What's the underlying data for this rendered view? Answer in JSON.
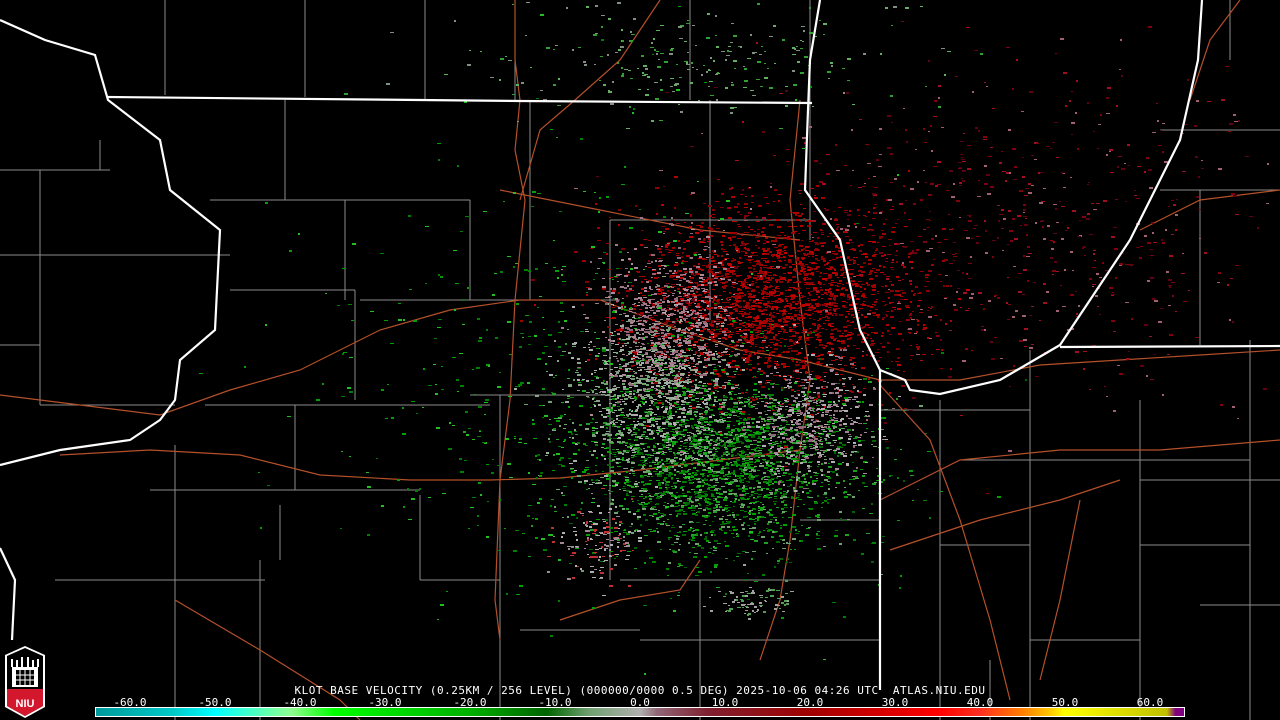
{
  "product_title": "KLOT BASE VELOCITY (0.25KM / 256 LEVEL) (000000/0000 0.5 DEG) 2025-10-06 04:26 UTC  ATLAS.NIU.EDU",
  "logo": {
    "text": "NIU",
    "accent": "#d3182e"
  },
  "colorbar": {
    "units_range": [
      -64,
      64
    ],
    "tick_labels": [
      "-60.0",
      "-50.0",
      "-40.0",
      "-30.0",
      "-20.0",
      "-10.0",
      "0.0",
      "10.0",
      "20.0",
      "30.0",
      "40.0",
      "50.0",
      "60.0"
    ],
    "tick_values": [
      -60,
      -50,
      -40,
      -30,
      -20,
      -10,
      0,
      10,
      20,
      30,
      40,
      50,
      60
    ],
    "stops": [
      {
        "v": -64,
        "c": "#009a9a"
      },
      {
        "v": -55,
        "c": "#00c8c8"
      },
      {
        "v": -50,
        "c": "#00ffff"
      },
      {
        "v": -44,
        "c": "#60ffb0"
      },
      {
        "v": -41,
        "c": "#90ff90"
      },
      {
        "v": -36,
        "c": "#00ff00"
      },
      {
        "v": -20,
        "c": "#00b000"
      },
      {
        "v": -11,
        "c": "#006400"
      },
      {
        "v": -6,
        "c": "#70a070"
      },
      {
        "v": 0,
        "c": "#b0b0b0"
      },
      {
        "v": 2,
        "c": "#906878"
      },
      {
        "v": 8,
        "c": "#802030"
      },
      {
        "v": 20,
        "c": "#a00000"
      },
      {
        "v": 35,
        "c": "#ff0000"
      },
      {
        "v": 40,
        "c": "#ff3020"
      },
      {
        "v": 45,
        "c": "#ff8000"
      },
      {
        "v": 48,
        "c": "#ffc000"
      },
      {
        "v": 50,
        "c": "#ffff00"
      },
      {
        "v": 62,
        "c": "#c0c000"
      },
      {
        "v": 63,
        "c": "#800080"
      }
    ]
  },
  "map_colors": {
    "state": "#ffffff",
    "county": "#8c8c8c",
    "road": "#b4502a",
    "background": "#000000"
  }
}
